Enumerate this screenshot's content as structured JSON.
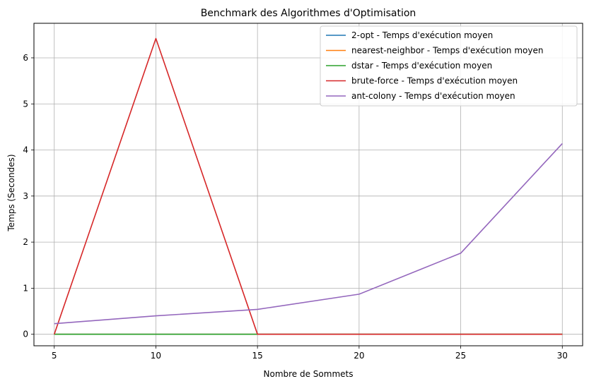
{
  "chart_data": {
    "type": "line",
    "title": "Benchmark des Algorithmes d'Optimisation",
    "xlabel": "Nombre de Sommets",
    "ylabel": "Temps (Secondes)",
    "x": [
      5,
      10,
      15,
      20,
      25,
      30
    ],
    "xlim": [
      4,
      31
    ],
    "ylim": [
      -0.25,
      6.75
    ],
    "xticks": [
      5,
      10,
      15,
      20,
      25,
      30
    ],
    "yticks": [
      0,
      1,
      2,
      3,
      4,
      5,
      6
    ],
    "grid": true,
    "legend_position": "top-right",
    "series": [
      {
        "name": "2-opt - Temps d'exécution moyen",
        "color": "#1f77b4",
        "values": [
          0,
          0,
          0,
          0,
          0,
          0
        ]
      },
      {
        "name": "nearest-neighbor - Temps d'exécution moyen",
        "color": "#ff7f0e",
        "values": [
          0,
          0,
          0,
          0,
          0,
          0
        ]
      },
      {
        "name": "dstar - Temps d'exécution moyen",
        "color": "#2ca02c",
        "values": [
          0,
          0,
          0,
          0,
          0,
          0
        ]
      },
      {
        "name": "brute-force - Temps d'exécution moyen",
        "color": "#d62728",
        "values": [
          0,
          6.42,
          0,
          0,
          0,
          0
        ]
      },
      {
        "name": "ant-colony - Temps d'exécution moyen",
        "color": "#9467bd",
        "values": [
          0.23,
          0.4,
          0.54,
          0.87,
          1.76,
          4.14
        ]
      }
    ]
  }
}
